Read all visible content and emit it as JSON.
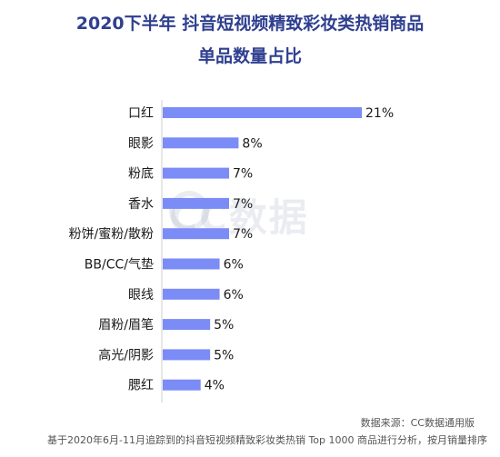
{
  "title_line1": "2020下半年 抖音短视频精致彩妆类热销商品",
  "title_line2": "单品数量占比",
  "watermark": "CC数据",
  "source": "数据来源：CC数据通用版",
  "footnote": "基于2020年6月-11月追踪到的抖音短视频精致彩妆类热销 Top 1000 商品进行分析，按月销量排序",
  "colors": {
    "bar": "#7b8cf7",
    "title": "#2f3f8f"
  },
  "chart_data": {
    "type": "bar",
    "orientation": "horizontal",
    "title": "2020下半年 抖音短视频精致彩妆类热销商品单品数量占比",
    "categories": [
      "口红",
      "眼影",
      "粉底",
      "香水",
      "粉饼/蜜粉/散粉",
      "BB/CC/气垫",
      "眼线",
      "眉粉/眉笔",
      "高光/阴影",
      "腮红"
    ],
    "values": [
      21,
      8,
      7,
      7,
      7,
      6,
      6,
      5,
      5,
      4
    ],
    "value_labels": [
      "21%",
      "8%",
      "7%",
      "7%",
      "7%",
      "6%",
      "6%",
      "5%",
      "5%",
      "4%"
    ],
    "unit": "%",
    "xlim": [
      0,
      21
    ],
    "grid": false,
    "legend": "none"
  }
}
